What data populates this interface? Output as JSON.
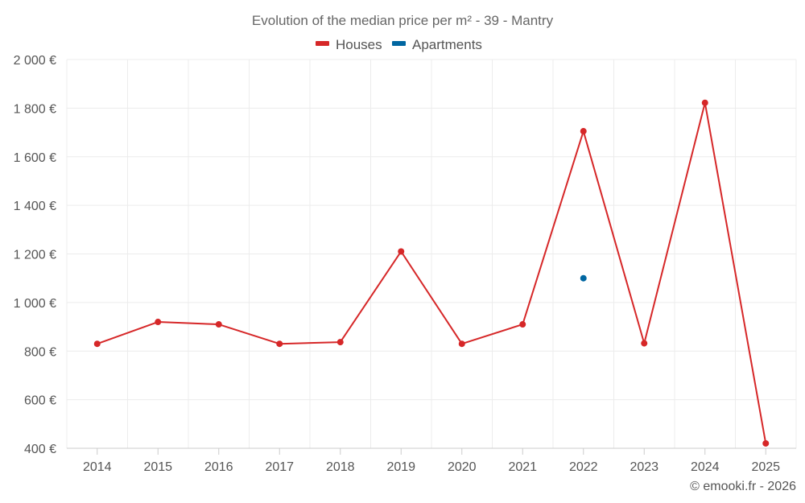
{
  "colors": {
    "houses": "#d62728",
    "apartments": "#0066a1",
    "grid": "#ececec",
    "axis": "#cccccc",
    "text": "#555555"
  },
  "credit": "© emooki.fr - 2026",
  "chart_data": {
    "type": "line",
    "title": "Evolution of the median price per m² - 39 - Mantry",
    "xlabel": "",
    "ylabel": "",
    "categories": [
      "2014",
      "2015",
      "2016",
      "2017",
      "2018",
      "2019",
      "2020",
      "2021",
      "2022",
      "2023",
      "2024",
      "2025"
    ],
    "ylim": [
      400,
      2000
    ],
    "yticks": [
      400,
      600,
      800,
      1000,
      1200,
      1400,
      1600,
      1800,
      2000
    ],
    "ytick_labels": [
      "400 €",
      "600 €",
      "800 €",
      "1 000 €",
      "1 200 €",
      "1 400 €",
      "1 600 €",
      "1 800 €",
      "2 000 €"
    ],
    "grid": true,
    "legend_position": "top-center",
    "series": [
      {
        "name": "Houses",
        "color_key": "houses",
        "values": [
          830,
          920,
          910,
          830,
          837,
          1210,
          830,
          910,
          1705,
          832,
          1822,
          420
        ]
      },
      {
        "name": "Apartments",
        "color_key": "apartments",
        "values": [
          null,
          null,
          null,
          null,
          null,
          null,
          null,
          null,
          1100,
          null,
          null,
          null
        ]
      }
    ]
  }
}
